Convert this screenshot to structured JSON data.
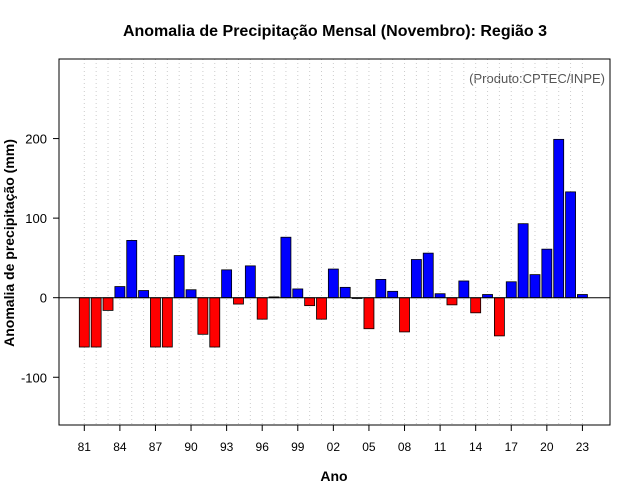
{
  "chart_data": {
    "type": "bar",
    "title": "Anomalia de Precipitação Mensal (Novembro): Região 3",
    "xlabel": "Ano",
    "ylabel": "Anomalia de precipitação (mm)",
    "credit": "(Produto:CPTEC/INPE)",
    "ylim": [
      -160,
      300
    ],
    "yticks": [
      -100,
      0,
      100,
      200
    ],
    "grid": "vertical-dotted",
    "years": [
      1981,
      1982,
      1983,
      1984,
      1985,
      1986,
      1987,
      1988,
      1989,
      1990,
      1991,
      1992,
      1993,
      1994,
      1995,
      1996,
      1997,
      1998,
      1999,
      2000,
      2001,
      2002,
      2003,
      2004,
      2005,
      2006,
      2007,
      2008,
      2009,
      2010,
      2011,
      2012,
      2013,
      2014,
      2015,
      2016,
      2017,
      2018,
      2019,
      2020,
      2021,
      2022,
      2023
    ],
    "values": [
      -62,
      -62,
      -16,
      14,
      72,
      9,
      -62,
      -62,
      53,
      10,
      -46,
      -62,
      35,
      -8,
      40,
      -27,
      1,
      76,
      11,
      -10,
      -27,
      36,
      13,
      -1,
      -39,
      23,
      8,
      -43,
      48,
      56,
      5,
      -9,
      21,
      -19,
      4,
      -48,
      20,
      93,
      29,
      61,
      199,
      133,
      4
    ],
    "xtick_labels": [
      "81",
      "84",
      "87",
      "90",
      "93",
      "96",
      "99",
      "02",
      "05",
      "08",
      "11",
      "14",
      "17",
      "20",
      "23"
    ],
    "xtick_years": [
      1981,
      1984,
      1987,
      1990,
      1993,
      1996,
      1999,
      2002,
      2005,
      2008,
      2011,
      2014,
      2017,
      2020,
      2023
    ],
    "colors": {
      "positive": "#0000ff",
      "negative": "#ff0000",
      "zero_line": "#000000",
      "grid": "#cccccc"
    }
  }
}
